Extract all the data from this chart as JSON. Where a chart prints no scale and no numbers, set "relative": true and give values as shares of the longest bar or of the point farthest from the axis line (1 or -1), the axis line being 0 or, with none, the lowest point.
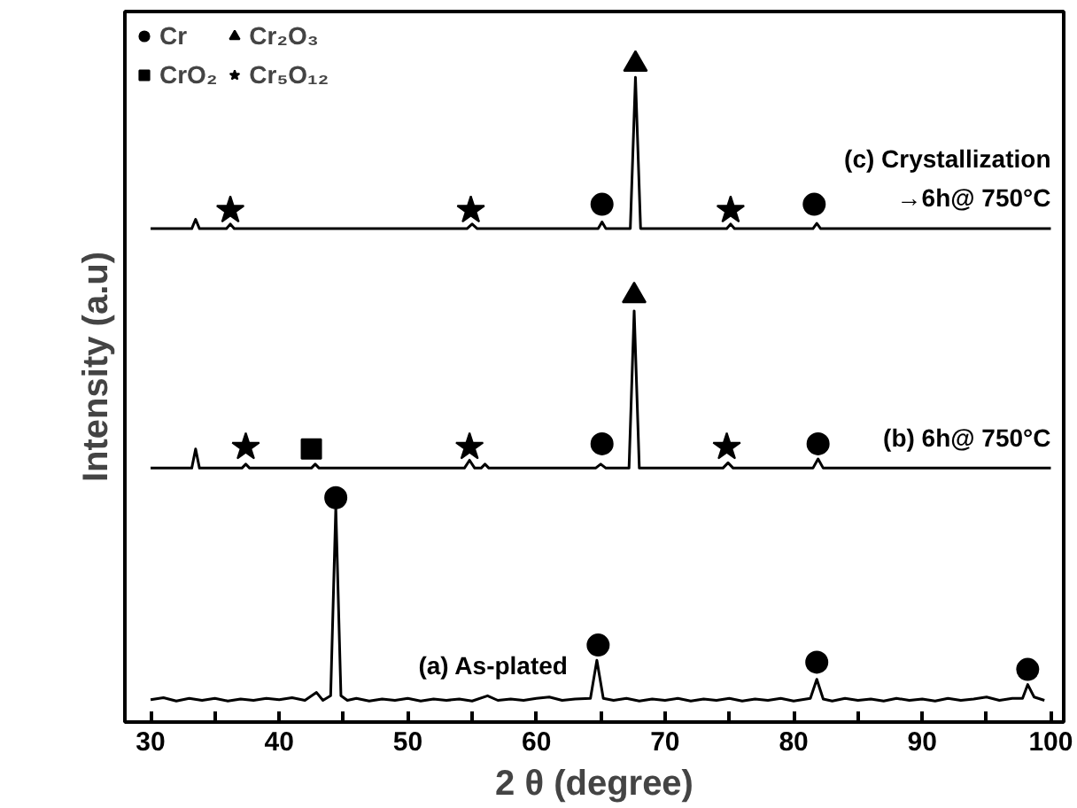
{
  "chart_data": {
    "type": "line",
    "xlabel": "2 θ (degree)",
    "ylabel": "Intensity (a.u)",
    "relative": true,
    "xlim": [
      28,
      101
    ],
    "xticks": [
      30,
      {
        "value": 35,
        "label": null
      },
      40,
      {
        "value": 45,
        "label": null
      },
      50,
      {
        "value": 55,
        "label": null
      },
      60,
      {
        "value": 65,
        "label": null
      },
      70,
      {
        "value": 75,
        "label": null
      },
      80,
      {
        "value": 85,
        "label": null
      },
      90,
      {
        "value": 95,
        "label": null
      },
      100
    ],
    "tick_labels": "x",
    "grid": false,
    "legend": "top left",
    "marker": "none",
    "line_style": "solid",
    "series": [
      {
        "name": "(c) Crystallization\n→6h@ 750°C",
        "color": "#000000",
        "x": [
          30,
          33.2,
          33.5,
          33.8,
          35.9,
          36.2,
          36.5,
          54.6,
          55,
          55.4,
          64.8,
          65.1,
          65.4,
          67.3,
          67.7,
          68.1,
          74.8,
          75.1,
          75.4,
          81.5,
          81.8,
          82.1,
          100
        ],
        "values": [
          0.75,
          0.75,
          0.764,
          0.75,
          0.75,
          0.757,
          0.75,
          0.75,
          0.757,
          0.75,
          0.75,
          0.76,
          0.75,
          0.75,
          0.98,
          0.75,
          0.75,
          0.757,
          0.75,
          0.75,
          0.758,
          0.75,
          0.75
        ]
      },
      {
        "name": "(b) 6h@ 750°C",
        "color": "#000000",
        "x": [
          30,
          33.2,
          33.5,
          33.8,
          37.1,
          37.4,
          37.7,
          42.5,
          42.8,
          43.1,
          54.4,
          54.8,
          55.2,
          55.7,
          56,
          56.3,
          64.6,
          65,
          65.4,
          67.2,
          67.6,
          68,
          74.5,
          74.9,
          75.3,
          81.5,
          81.9,
          82.3,
          100
        ],
        "values": [
          0.386,
          0.386,
          0.415,
          0.386,
          0.386,
          0.392,
          0.386,
          0.386,
          0.392,
          0.386,
          0.386,
          0.398,
          0.386,
          0.386,
          0.392,
          0.386,
          0.386,
          0.392,
          0.386,
          0.386,
          0.625,
          0.386,
          0.386,
          0.394,
          0.386,
          0.386,
          0.4,
          0.386,
          0.386
        ]
      },
      {
        "name": "(a) As-plated",
        "color": "#000000",
        "x": [
          30,
          31,
          32,
          33,
          34,
          35,
          36,
          37,
          38,
          39,
          40,
          41,
          42,
          42.9,
          43.4,
          44.0,
          44.4,
          44.8,
          45.3,
          46,
          47,
          48,
          49,
          50,
          51,
          52,
          53,
          54,
          55,
          56.2,
          57,
          58,
          59,
          60,
          61,
          62,
          63,
          64.2,
          64.7,
          65.2,
          66,
          67,
          68,
          69,
          70,
          71,
          72,
          73,
          74,
          75,
          76,
          77,
          78,
          79,
          80,
          81.3,
          81.8,
          82.3,
          83,
          84,
          85,
          86,
          87,
          88,
          89,
          90,
          91,
          92,
          93,
          94,
          95,
          96,
          97,
          97.8,
          98.2,
          98.7,
          99.5
        ],
        "values": [
          0.034,
          0.037,
          0.032,
          0.036,
          0.033,
          0.036,
          0.032,
          0.035,
          0.033,
          0.036,
          0.034,
          0.037,
          0.033,
          0.045,
          0.033,
          0.04,
          0.327,
          0.04,
          0.033,
          0.036,
          0.032,
          0.035,
          0.033,
          0.036,
          0.032,
          0.035,
          0.033,
          0.035,
          0.032,
          0.04,
          0.033,
          0.035,
          0.033,
          0.036,
          0.038,
          0.033,
          0.035,
          0.036,
          0.094,
          0.036,
          0.033,
          0.036,
          0.032,
          0.035,
          0.033,
          0.036,
          0.032,
          0.035,
          0.033,
          0.036,
          0.032,
          0.035,
          0.033,
          0.036,
          0.032,
          0.036,
          0.065,
          0.035,
          0.032,
          0.036,
          0.033,
          0.035,
          0.032,
          0.036,
          0.033,
          0.035,
          0.032,
          0.036,
          0.033,
          0.035,
          0.038,
          0.033,
          0.036,
          0.036,
          0.057,
          0.038,
          0.033
        ]
      },
      {
        "type": "scatter",
        "marker": "circle",
        "name": "Cr",
        "color": "#000000",
        "x": [
          65.1,
          81.6,
          65.1,
          81.9,
          44.4,
          64.8,
          81.8,
          98.2
        ],
        "values": [
          0.787,
          0.787,
          0.423,
          0.423,
          0.341,
          0.117,
          0.091,
          0.08
        ]
      },
      {
        "type": "scatter",
        "marker": "triangle",
        "name": "Cr₂O₃",
        "color": "#000000",
        "x": [
          67.7,
          67.6
        ],
        "values": [
          1.0,
          0.648
        ]
      },
      {
        "type": "scatter",
        "marker": "square",
        "name": "CrO₂",
        "color": "#000000",
        "x": [
          42.5
        ],
        "values": [
          0.415
        ]
      },
      {
        "type": "scatter",
        "marker": "star",
        "name": "Cr₅O₁₂",
        "color": "#000000",
        "x": [
          36.2,
          54.9,
          75.1,
          37.4,
          54.8,
          74.8
        ],
        "values": [
          0.778,
          0.778,
          0.778,
          0.418,
          0.418,
          0.418
        ]
      }
    ]
  }
}
